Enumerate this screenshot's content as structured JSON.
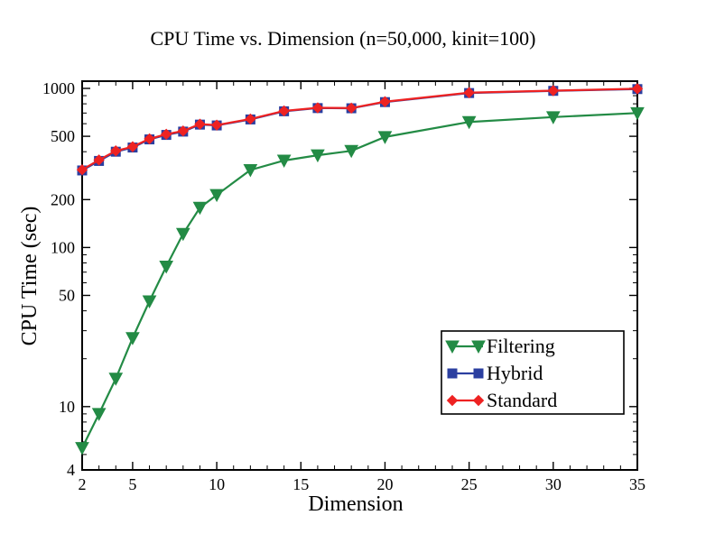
{
  "chart_data": {
    "type": "line",
    "title": "CPU Time vs. Dimension (n=50,000, kinit=100)",
    "xlabel": "Dimension",
    "ylabel": "CPU Time (sec)",
    "xlim": [
      2,
      35
    ],
    "ylim": [
      4,
      1000
    ],
    "yscale": "log",
    "xticks": [
      2,
      5,
      10,
      15,
      20,
      25,
      30,
      35
    ],
    "yticks": [
      4,
      10,
      50,
      100,
      200,
      500,
      1000
    ],
    "grid": false,
    "legend_position": "bottom-right",
    "series": [
      {
        "name": "Filtering",
        "color": "#238b45",
        "marker": "triangle-down",
        "x": [
          2,
          3,
          4,
          5,
          6,
          7,
          8,
          9,
          10,
          12,
          14,
          16,
          18,
          20,
          25,
          30,
          35
        ],
        "y": [
          5.5,
          9,
          15,
          27,
          46,
          76,
          122,
          178,
          214,
          307,
          352,
          380,
          405,
          495,
          615,
          660,
          700
        ]
      },
      {
        "name": "Hybrid",
        "color": "#2b3fa0",
        "marker": "square",
        "x": [
          2,
          3,
          4,
          5,
          6,
          7,
          8,
          9,
          10,
          12,
          14,
          16,
          18,
          20,
          25,
          30,
          35
        ],
        "y": [
          305,
          350,
          400,
          425,
          478,
          510,
          535,
          592,
          585,
          638,
          718,
          752,
          750,
          820,
          935,
          965,
          990
        ]
      },
      {
        "name": "Standard",
        "color": "#ee2222",
        "marker": "diamond",
        "x": [
          2,
          3,
          4,
          5,
          6,
          7,
          8,
          9,
          10,
          12,
          14,
          16,
          18,
          20,
          25,
          30,
          35
        ],
        "y": [
          308,
          355,
          405,
          430,
          482,
          515,
          540,
          596,
          588,
          642,
          722,
          755,
          752,
          825,
          940,
          968,
          995
        ]
      }
    ]
  }
}
